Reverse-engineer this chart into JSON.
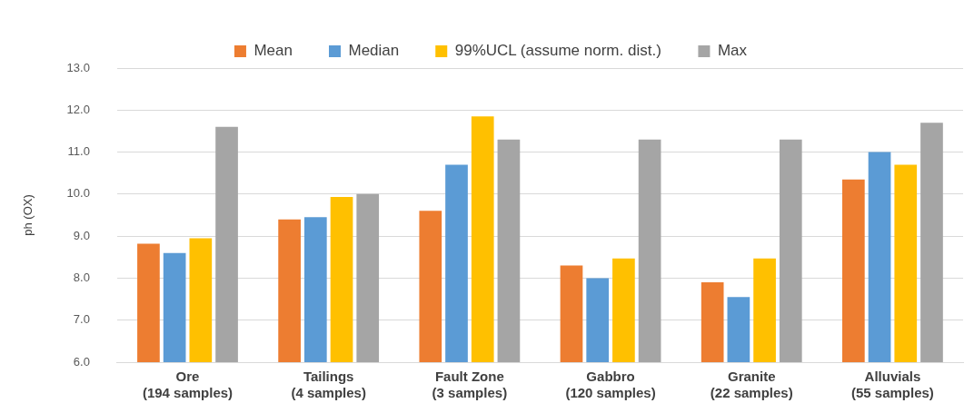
{
  "chart_data": {
    "type": "bar",
    "ylabel": "ph (OX)",
    "categories": [
      "Ore\n(194 samples)",
      "Tailings\n(4 samples)",
      "Fault Zone\n(3 samples)",
      "Gabbro\n(120 samples)",
      "Granite\n(22 samples)",
      "Alluvials\n(55 samples)"
    ],
    "series": [
      {
        "name": "Mean",
        "color": "#ed7d31",
        "values": [
          8.82,
          9.4,
          9.6,
          8.3,
          7.9,
          10.35
        ]
      },
      {
        "name": "Median",
        "color": "#5b9bd5",
        "values": [
          8.6,
          9.45,
          10.7,
          8.0,
          7.55,
          11.0
        ]
      },
      {
        "name": "99%UCL (assume norm. dist.)",
        "color": "#ffc000",
        "values": [
          8.95,
          9.93,
          11.85,
          8.47,
          8.47,
          10.7
        ]
      },
      {
        "name": "Max",
        "color": "#a5a5a5",
        "values": [
          11.6,
          10.0,
          11.3,
          11.3,
          11.3,
          11.7
        ]
      }
    ],
    "ylim": [
      6,
      13
    ],
    "yticks": [
      {
        "value": 6,
        "label": "6.0"
      },
      {
        "value": 7,
        "label": "7.0"
      },
      {
        "value": 8,
        "label": "8.0"
      },
      {
        "value": 9,
        "label": "9.0"
      },
      {
        "value": 10,
        "label": "10.0"
      },
      {
        "value": 11,
        "label": "11.0"
      },
      {
        "value": 12,
        "label": "12.0"
      },
      {
        "value": 13,
        "label": "13.0"
      }
    ],
    "grid": "y",
    "legend": "top"
  }
}
